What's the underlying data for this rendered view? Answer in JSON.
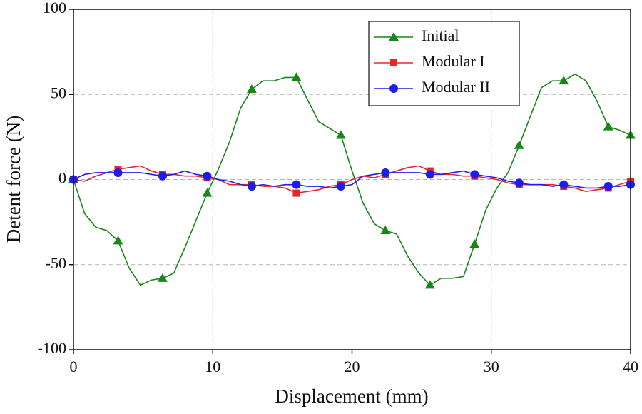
{
  "chart_data": {
    "type": "line",
    "xlabel": "Displacement (mm)",
    "ylabel": "Detent force (N)",
    "x": [
      0,
      0.8,
      1.6,
      2.4,
      3.2,
      4,
      4.8,
      5.6,
      6.4,
      7.2,
      8,
      8.8,
      9.6,
      10.4,
      11.2,
      12,
      12.8,
      13.6,
      14.4,
      15.2,
      16,
      16.8,
      17.6,
      18.4,
      19.2,
      20,
      20.8,
      21.6,
      22.4,
      23.2,
      24,
      24.8,
      25.6,
      26.4,
      27.2,
      28,
      28.8,
      29.6,
      30.4,
      31.2,
      32,
      32.8,
      33.6,
      34.4,
      35.2,
      36,
      36.8,
      37.6,
      38.4,
      39.2,
      40
    ],
    "series": [
      {
        "name": "Initial",
        "color": "#178817",
        "marker": "triangle",
        "values": [
          0,
          -20,
          -28,
          -30,
          -36,
          -52,
          -62,
          -59,
          -58,
          -55,
          -40,
          -24,
          -8,
          6,
          22,
          42,
          53,
          58,
          58,
          60,
          60,
          47,
          34,
          30,
          26,
          5,
          -14,
          -26,
          -30,
          -32,
          -45,
          -55,
          -62,
          -58,
          -58,
          -57,
          -38,
          -18,
          -5,
          4,
          20,
          37,
          54,
          58,
          58,
          62,
          58,
          46,
          31,
          29,
          26
        ]
      },
      {
        "name": "Modular I",
        "color": "#e8262a",
        "marker": "square",
        "values": [
          0,
          -1,
          2,
          4,
          6,
          7,
          8,
          5,
          3,
          3,
          2,
          2,
          1,
          0,
          -3,
          -3,
          -3,
          -4,
          -4,
          -5,
          -8,
          -7,
          -6,
          -4,
          -3,
          0,
          2,
          1,
          3,
          5,
          7,
          8,
          5,
          3,
          3,
          2,
          2,
          1,
          0,
          -2,
          -3,
          -3,
          -3,
          -3,
          -4,
          -5,
          -7,
          -6,
          -5,
          -3,
          -1
        ]
      },
      {
        "name": "Modular II",
        "color": "#1c1cf0",
        "marker": "circle",
        "values": [
          0,
          3,
          4,
          4,
          4,
          4,
          4,
          3,
          2,
          3,
          5,
          3,
          2,
          0,
          -1,
          -3,
          -4,
          -3,
          -4,
          -3,
          -3,
          -4,
          -4,
          -5,
          -4,
          -3,
          2,
          3,
          4,
          4,
          4,
          4,
          3,
          3,
          4,
          5,
          3,
          2,
          1,
          -1,
          -2,
          -3,
          -3,
          -4,
          -3,
          -4,
          -5,
          -5,
          -4,
          -4,
          -3
        ]
      }
    ],
    "markevery": 4,
    "xlim": [
      0,
      40
    ],
    "xticks": [
      0,
      10,
      20,
      30,
      40
    ],
    "ylim": [
      -100,
      100
    ],
    "yticks": [
      -100,
      -50,
      0,
      50,
      100
    ],
    "grid": true,
    "legend": "upper right"
  }
}
